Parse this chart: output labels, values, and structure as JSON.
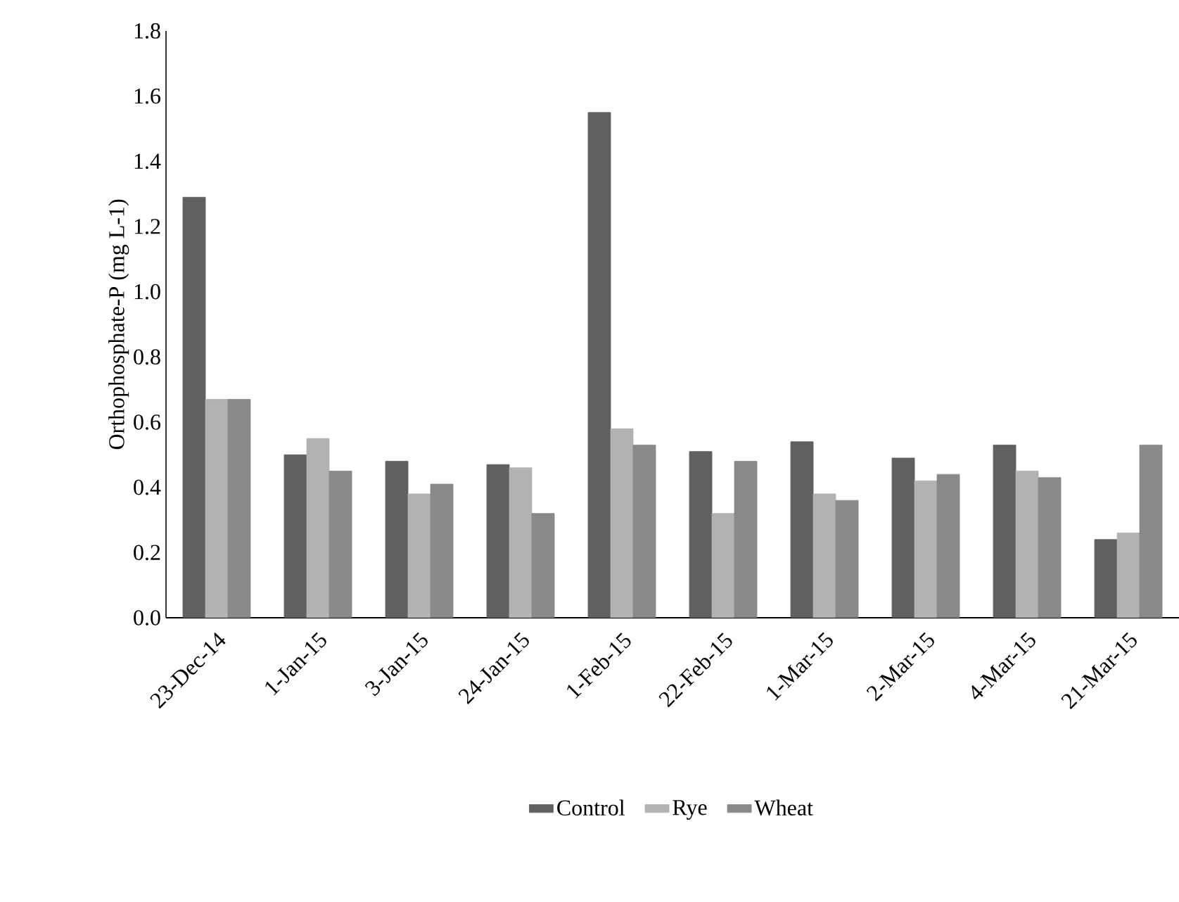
{
  "chart_data": {
    "type": "bar",
    "ylabel": "Orthophosphate-P (mg L-1)",
    "categories": [
      "23-Dec-14",
      "1-Jan-15",
      "3-Jan-15",
      "24-Jan-15",
      "1-Feb-15",
      "22-Feb-15",
      "1-Mar-15",
      "2-Mar-15",
      "4-Mar-15",
      "21-Mar-15"
    ],
    "series": [
      {
        "name": "Control",
        "color": "#606060",
        "values": [
          1.29,
          0.5,
          0.48,
          0.47,
          1.55,
          0.51,
          0.54,
          0.49,
          0.53,
          0.24
        ]
      },
      {
        "name": "Rye",
        "color": "#b2b2b2",
        "values": [
          0.67,
          0.55,
          0.38,
          0.46,
          0.58,
          0.32,
          0.38,
          0.42,
          0.45,
          0.26
        ]
      },
      {
        "name": "Wheat",
        "color": "#898989",
        "values": [
          0.67,
          0.45,
          0.41,
          0.32,
          0.53,
          0.48,
          0.36,
          0.44,
          0.43,
          0.53
        ]
      }
    ],
    "ylim": [
      0,
      1.8
    ],
    "yticks": [
      {
        "value": 0,
        "label": "0.0"
      },
      {
        "value": 0.2,
        "label": "0.2"
      },
      {
        "value": 0.4,
        "label": "0.4"
      },
      {
        "value": 0.6,
        "label": "0.6"
      },
      {
        "value": 0.8,
        "label": "0.8"
      },
      {
        "value": 1.0,
        "label": "1.0"
      },
      {
        "value": 1.2,
        "label": "1.2"
      },
      {
        "value": 1.4,
        "label": "1.4"
      },
      {
        "value": 1.6,
        "label": "1.6"
      },
      {
        "value": 1.8,
        "label": "1.8"
      }
    ],
    "legend": "bottom",
    "grid": false
  }
}
